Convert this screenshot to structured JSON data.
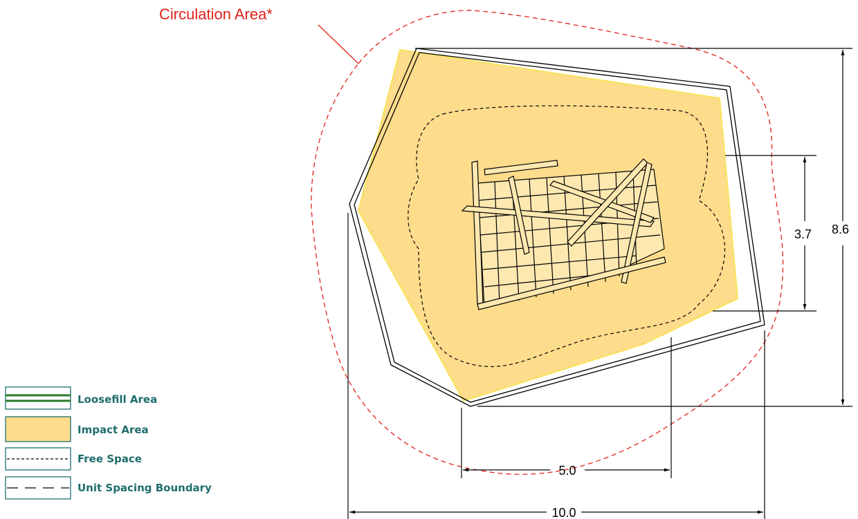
{
  "callout": {
    "label": "Circulation Area*"
  },
  "dimensions": {
    "inner_height": "3.7",
    "outer_height": "8.6",
    "inner_width": "5.0",
    "outer_width": "10.0"
  },
  "legend": {
    "items": [
      "Loosefill Area",
      "Impact Area",
      "Free Space",
      "Unit Spacing Boundary"
    ]
  }
}
